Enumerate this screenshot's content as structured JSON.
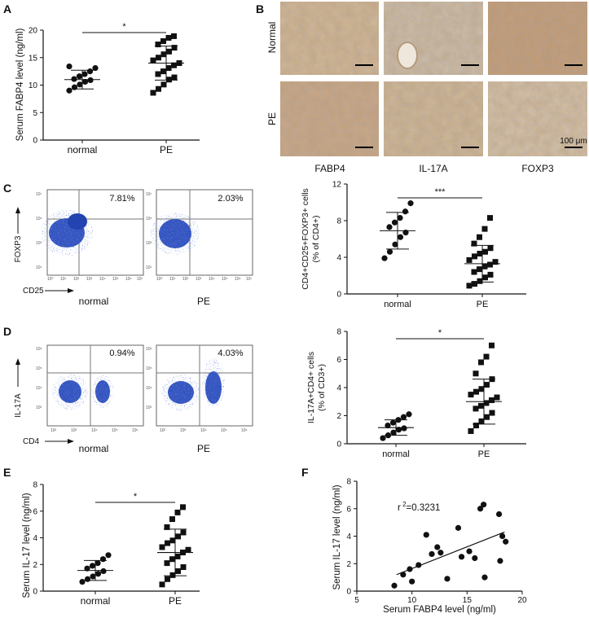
{
  "panel_labels": {
    "A": "A",
    "B": "B",
    "C": "C",
    "D": "D",
    "E": "E",
    "F": "F"
  },
  "histology": {
    "rows": [
      "Normal",
      "PE"
    ],
    "columns": [
      "FABP4",
      "IL-17A",
      "FOXP3"
    ],
    "scale_label": "100 μm"
  },
  "flow": {
    "C": {
      "plots": [
        {
          "pct": "7.81%",
          "group": "normal"
        },
        {
          "pct": "2.03%",
          "group": "PE"
        }
      ],
      "y_label": "FOXP3",
      "x_label": "CD25",
      "ticks": [
        "10⁰",
        "10¹",
        "10²",
        "10³",
        "10⁴",
        "10⁵",
        "10⁶",
        "10⁷"
      ]
    },
    "D": {
      "plots": [
        {
          "pct": "0.94%",
          "group": "normal"
        },
        {
          "pct": "4.03%",
          "group": "PE"
        }
      ],
      "y_label": "IL-17A",
      "x_label": "CD4",
      "ticks": [
        "10²",
        "10³",
        "10⁴",
        "10⁵",
        "10⁶"
      ]
    }
  },
  "chart_data": [
    {
      "panel": "A",
      "type": "scatter",
      "categories": [
        "normal",
        "PE"
      ],
      "ylabel": "Serum FABP4 level (ng/ml)",
      "xlabel": "",
      "ylim": [
        0,
        20
      ],
      "yticks": [
        0,
        5,
        10,
        15,
        20
      ],
      "significance": "*",
      "groups": [
        {
          "name": "normal",
          "marker": "circle",
          "mean": 11.0,
          "sd": 1.7,
          "values": [
            9.0,
            9.6,
            10.1,
            10.6,
            10.9,
            11.1,
            11.6,
            12.0,
            12.5,
            13.1,
            13.4
          ]
        },
        {
          "name": "PE",
          "marker": "square",
          "mean": 14.0,
          "sd": 3.1,
          "values": [
            8.6,
            9.3,
            10.1,
            11.0,
            11.4,
            12.0,
            12.5,
            13.1,
            13.6,
            14.0,
            14.5,
            15.0,
            15.6,
            16.1,
            16.8,
            17.4,
            18.0,
            18.6,
            18.9
          ]
        }
      ]
    },
    {
      "panel": "C",
      "type": "scatter",
      "categories": [
        "normal",
        "PE"
      ],
      "ylabel_lines": [
        "CD4+CD25+FOXP3+ cells",
        "(% of CD4+)"
      ],
      "xlabel": "",
      "ylim": [
        0,
        12
      ],
      "yticks": [
        0,
        4,
        8,
        12
      ],
      "significance": "***",
      "groups": [
        {
          "name": "normal",
          "marker": "circle",
          "mean": 6.9,
          "sd": 2.0,
          "values": [
            3.9,
            4.6,
            5.4,
            6.2,
            6.7,
            7.3,
            7.8,
            8.3,
            9.0,
            9.9
          ]
        },
        {
          "name": "PE",
          "marker": "square",
          "mean": 3.3,
          "sd": 2.0,
          "values": [
            0.9,
            1.1,
            1.4,
            1.8,
            2.1,
            2.4,
            2.7,
            3.0,
            3.2,
            3.5,
            3.7,
            4.1,
            4.4,
            4.6,
            5.0,
            5.5,
            6.2,
            7.1,
            8.3
          ]
        }
      ]
    },
    {
      "panel": "D",
      "type": "scatter",
      "categories": [
        "normal",
        "PE"
      ],
      "ylabel_lines": [
        "IL-17A+CD4+ cells",
        "(% of CD3+)"
      ],
      "xlabel": "",
      "ylim": [
        0,
        8
      ],
      "yticks": [
        0,
        2,
        4,
        6,
        8
      ],
      "significance": "*",
      "groups": [
        {
          "name": "normal",
          "marker": "circle",
          "mean": 1.15,
          "sd": 0.55,
          "values": [
            0.4,
            0.6,
            0.8,
            1.0,
            1.1,
            1.3,
            1.5,
            1.7,
            1.9,
            2.1
          ]
        },
        {
          "name": "PE",
          "marker": "square",
          "mean": 3.0,
          "sd": 1.6,
          "values": [
            0.9,
            1.3,
            1.6,
            1.9,
            2.2,
            2.5,
            2.7,
            2.9,
            3.1,
            3.3,
            3.5,
            3.7,
            3.9,
            4.2,
            4.6,
            5.0,
            5.8,
            6.2,
            7.0
          ]
        }
      ]
    },
    {
      "panel": "E",
      "type": "scatter",
      "categories": [
        "normal",
        "PE"
      ],
      "ylabel": "Serum IL-17 level (ng/ml)",
      "xlabel": "",
      "ylim": [
        0,
        8
      ],
      "yticks": [
        0,
        2,
        4,
        6,
        8
      ],
      "significance": "*",
      "groups": [
        {
          "name": "normal",
          "marker": "circle",
          "mean": 1.55,
          "sd": 0.75,
          "values": [
            0.7,
            0.9,
            1.1,
            1.3,
            1.5,
            1.7,
            1.9,
            2.1,
            2.4,
            2.7
          ]
        },
        {
          "name": "PE",
          "marker": "square",
          "mean": 2.9,
          "sd": 1.75,
          "values": [
            0.5,
            0.9,
            1.2,
            1.5,
            1.8,
            2.1,
            2.4,
            2.6,
            2.9,
            3.1,
            3.3,
            3.6,
            3.8,
            4.1,
            4.4,
            4.8,
            5.4,
            5.9,
            6.3
          ]
        }
      ]
    },
    {
      "panel": "F",
      "type": "scatter",
      "xlabel": "Serum FABP4 level (ng/ml)",
      "ylabel": "Serum IL-17 level (ng/ml)",
      "xlim": [
        5,
        20
      ],
      "ylim": [
        0,
        8
      ],
      "xticks": [
        5,
        10,
        15,
        20
      ],
      "yticks": [
        0,
        2,
        4,
        6,
        8
      ],
      "annotation": {
        "prefix": "r",
        "exponent": "2",
        "value": "=0.3231"
      },
      "fit": {
        "x1": 8.6,
        "y1": 1.2,
        "x2": 18.4,
        "y2": 4.3
      },
      "points": [
        [
          8.4,
          0.4
        ],
        [
          9.2,
          1.2
        ],
        [
          9.8,
          1.6
        ],
        [
          10.0,
          0.7
        ],
        [
          10.6,
          1.9
        ],
        [
          11.3,
          4.1
        ],
        [
          11.8,
          2.7
        ],
        [
          12.3,
          3.2
        ],
        [
          12.6,
          2.8
        ],
        [
          13.2,
          0.9
        ],
        [
          14.2,
          4.6
        ],
        [
          14.5,
          2.5
        ],
        [
          15.2,
          2.9
        ],
        [
          15.7,
          2.4
        ],
        [
          16.2,
          6.0
        ],
        [
          16.5,
          6.3
        ],
        [
          16.6,
          1.0
        ],
        [
          17.9,
          5.6
        ],
        [
          18.0,
          2.2
        ],
        [
          18.2,
          4.0
        ],
        [
          18.5,
          3.6
        ]
      ]
    }
  ]
}
